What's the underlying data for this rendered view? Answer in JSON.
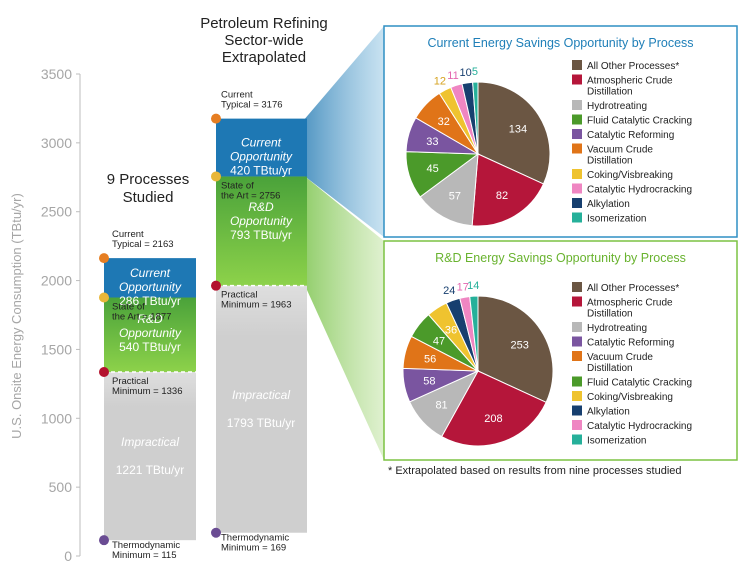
{
  "colors": {
    "current": "#1e78b4",
    "rnd_top": "#4aa23a",
    "rnd_bottom": "#8dd24a",
    "impractical": "#cfcfcf",
    "axis_text": "#a6a6a6",
    "marker_current": "#e67e22",
    "marker_soa": "#e8b73a",
    "marker_practical": "#b3122d",
    "marker_thermo": "#6a4c93",
    "panel_top_border": "#2f8fc4",
    "panel_top_title": "#1f7fb8",
    "panel_bottom_border": "#7cc242",
    "panel_bottom_title": "#69b32f"
  },
  "chart_data": [
    {
      "type": "bar",
      "title": "Petroleum Refining Sector-wide Extrapolated",
      "ylabel": "U.S. Onsite Energy Consumption (TBtu/yr)",
      "ylim": [
        0,
        3500
      ],
      "yticks": [
        0,
        500,
        1000,
        1500,
        2000,
        2500,
        3000,
        3500
      ],
      "grid": false,
      "columns": [
        {
          "heading": "9 Processes Studied",
          "current_typical": 2163,
          "state_of_art": 1877,
          "practical_minimum": 1336,
          "thermodynamic_minimum": 115,
          "segments": [
            {
              "name": "Current Opportunity",
              "value": "286 TBtu/yr"
            },
            {
              "name": "R&D Opportunity",
              "value": "540 TBtu/yr"
            },
            {
              "name": "Impractical",
              "value": "1221 TBtu/yr"
            }
          ],
          "labels": {
            "current": [
              "Current",
              "Typical = 2163"
            ],
            "soa": [
              "State of",
              "the Art = 1877"
            ],
            "practical": [
              "Practical",
              "Minimum = 1336"
            ],
            "thermo": [
              "Thermodynamic",
              "Minimum = 115"
            ]
          }
        },
        {
          "heading": "Petroleum Refining Sector-wide Extrapolated",
          "current_typical": 3176,
          "state_of_art": 2756,
          "practical_minimum": 1963,
          "thermodynamic_minimum": 169,
          "segments": [
            {
              "name": "Current Opportunity",
              "value": "420 TBtu/yr"
            },
            {
              "name": "R&D Opportunity",
              "value": "793 TBtu/yr"
            },
            {
              "name": "Impractical",
              "value": "1793 TBtu/yr"
            }
          ],
          "labels": {
            "current": [
              "Current",
              "Typical = 3176"
            ],
            "soa": [
              "State of",
              "the Art = 2756"
            ],
            "practical": [
              "Practical",
              "Minimum = 1963"
            ],
            "thermo": [
              "Thermodynamic",
              "Minimum = 169"
            ]
          }
        }
      ],
      "title_lines": [
        "Petroleum Refining",
        "Sector-wide",
        "Extrapolated"
      ],
      "left_heading_lines": [
        "9 Processes",
        "Studied"
      ]
    },
    {
      "type": "pie",
      "title": "Current Energy Savings Opportunity by Process",
      "legend_placement": "right",
      "slices": [
        {
          "label": "All Other Processes*",
          "value": 134,
          "color": "#6b5643",
          "label_color": "#ffffff"
        },
        {
          "label": "Atmospheric Crude Distillation",
          "value": 82,
          "color": "#b5163a",
          "label_color": "#ffffff"
        },
        {
          "label": "Hydrotreating",
          "value": 57,
          "color": "#b8b8b8",
          "label_color": "#ffffff"
        },
        {
          "label": "Fluid Catalytic Cracking",
          "value": 45,
          "color": "#4b9a2a",
          "label_color": "#ffffff"
        },
        {
          "label": "Catalytic Reforming",
          "value": 33,
          "color": "#7a55a0",
          "label_color": "#ffffff"
        },
        {
          "label": "Vacuum Crude Distillation",
          "value": 32,
          "color": "#e07418",
          "label_color": "#ffffff"
        },
        {
          "label": "Coking/Visbreaking",
          "value": 12,
          "color": "#efc32f",
          "label_color": "#d6a21e"
        },
        {
          "label": "Catalytic Hydrocracking",
          "value": 11,
          "color": "#ef86c2",
          "label_color": "#e466b0"
        },
        {
          "label": "Alkylation",
          "value": 10,
          "color": "#173f6f",
          "label_color": "#173f6f"
        },
        {
          "label": "Isomerization",
          "value": 5,
          "color": "#26b09a",
          "label_color": "#26b09a"
        }
      ],
      "legend_lines": [
        [
          "All Other Processes*"
        ],
        [
          "Atmospheric Crude",
          "Distillation"
        ],
        [
          "Hydrotreating"
        ],
        [
          "Fluid Catalytic Cracking"
        ],
        [
          "Catalytic Reforming"
        ],
        [
          "Vacuum Crude",
          "Distillation"
        ],
        [
          "Coking/Visbreaking"
        ],
        [
          "Catalytic Hydrocracking"
        ],
        [
          "Alkylation"
        ],
        [
          "Isomerization"
        ]
      ]
    },
    {
      "type": "pie",
      "title": "R&D Energy Savings Opportunity by Process",
      "legend_placement": "right",
      "slices": [
        {
          "label": "All Other Processes*",
          "value": 253,
          "color": "#6b5643",
          "label_color": "#ffffff"
        },
        {
          "label": "Atmospheric Crude Distillation",
          "value": 208,
          "color": "#b5163a",
          "label_color": "#ffffff"
        },
        {
          "label": "Hydrotreating",
          "value": 81,
          "color": "#b8b8b8",
          "label_color": "#ffffff"
        },
        {
          "label": "Catalytic Reforming",
          "value": 58,
          "color": "#7a55a0",
          "label_color": "#ffffff"
        },
        {
          "label": "Vacuum Crude Distillation",
          "value": 56,
          "color": "#e07418",
          "label_color": "#ffffff"
        },
        {
          "label": "Fluid Catalytic Cracking",
          "value": 47,
          "color": "#4b9a2a",
          "label_color": "#ffffff"
        },
        {
          "label": "Coking/Visbreaking",
          "value": 36,
          "color": "#efc32f",
          "label_color": "#ffffff"
        },
        {
          "label": "Alkylation",
          "value": 24,
          "color": "#173f6f",
          "label_color": "#173f6f"
        },
        {
          "label": "Catalytic Hydrocracking",
          "value": 17,
          "color": "#ef86c2",
          "label_color": "#e466b0"
        },
        {
          "label": "Isomerization",
          "value": 14,
          "color": "#26b09a",
          "label_color": "#26b09a"
        }
      ],
      "legend_lines": [
        [
          "All Other Processes*"
        ],
        [
          "Atmospheric Crude",
          "Distillation"
        ],
        [
          "Hydrotreating"
        ],
        [
          "Catalytic Reforming"
        ],
        [
          "Vacuum Crude",
          "Distillation"
        ],
        [
          "Fluid Catalytic Cracking"
        ],
        [
          "Coking/Visbreaking"
        ],
        [
          "Alkylation"
        ],
        [
          "Catalytic Hydrocracking"
        ],
        [
          "Isomerization"
        ]
      ]
    }
  ],
  "footnote": "* Extrapolated based on results from nine processes studied"
}
